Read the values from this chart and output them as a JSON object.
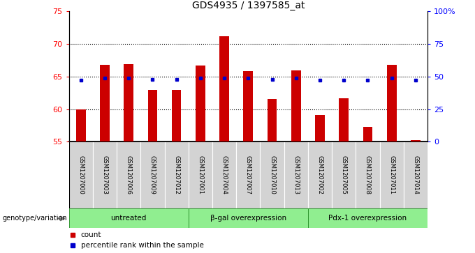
{
  "title": "GDS4935 / 1397585_at",
  "samples": [
    "GSM1207000",
    "GSM1207003",
    "GSM1207006",
    "GSM1207009",
    "GSM1207012",
    "GSM1207001",
    "GSM1207004",
    "GSM1207007",
    "GSM1207010",
    "GSM1207013",
    "GSM1207002",
    "GSM1207005",
    "GSM1207008",
    "GSM1207011",
    "GSM1207014"
  ],
  "counts": [
    60.0,
    66.8,
    66.9,
    63.0,
    62.9,
    66.7,
    71.2,
    65.8,
    61.6,
    65.9,
    59.1,
    61.7,
    57.3,
    66.8,
    55.2
  ],
  "percentiles": [
    47,
    49,
    49,
    48,
    48,
    49,
    49,
    49,
    48,
    49,
    47,
    47,
    47,
    49,
    47
  ],
  "groups": [
    {
      "label": "untreated",
      "start": 0,
      "end": 4
    },
    {
      "label": "β-gal overexpression",
      "start": 5,
      "end": 9
    },
    {
      "label": "Pdx-1 overexpression",
      "start": 10,
      "end": 14
    }
  ],
  "bar_color": "#cc0000",
  "dot_color": "#0000cc",
  "ylim_left": [
    55,
    75
  ],
  "ylim_right": [
    0,
    100
  ],
  "yticks_left": [
    55,
    60,
    65,
    70,
    75
  ],
  "yticks_right": [
    0,
    25,
    50,
    75,
    100
  ],
  "ytick_labels_right": [
    "0",
    "25",
    "50",
    "75",
    "100%"
  ],
  "grid_values": [
    60,
    65,
    70
  ],
  "bar_width": 0.4,
  "genotype_label": "genotype/variation",
  "legend_count_label": "count",
  "legend_percentile_label": "percentile rank within the sample",
  "group_bg_color": "#90EE90",
  "sample_bg_color": "#d3d3d3",
  "group_border_color": "#228B22"
}
